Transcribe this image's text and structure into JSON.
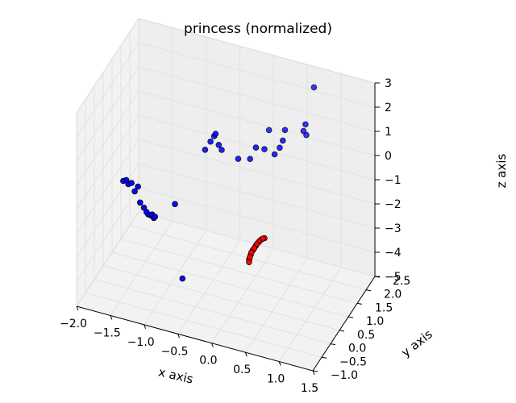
{
  "chart_data": {
    "type": "scatter",
    "projection": "3d",
    "title": "princess (normalized)",
    "xlabel": "x axis",
    "ylabel": "y axis",
    "zlabel": "z axis",
    "xlim": [
      -2.0,
      1.5
    ],
    "ylim": [
      -1.0,
      2.5
    ],
    "zlim": [
      -5,
      3
    ],
    "xticks": [
      "−2.0",
      "−1.5",
      "−1.0",
      "−0.5",
      "0.0",
      "0.5",
      "1.0",
      "1.5"
    ],
    "yticks": [
      "−1.0",
      "−0.5",
      "0.0",
      "0.5",
      "1.0",
      "1.5",
      "2.0",
      "2.5"
    ],
    "zticks": [
      "−5",
      "−4",
      "−3",
      "−2",
      "−1",
      "0",
      "1",
      "2",
      "3"
    ],
    "grid": true,
    "series": [
      {
        "color": "#0000ff",
        "edge_color": "#000000",
        "points": [
          [
            -1.65,
            0.3,
            -1.0
          ],
          [
            -1.6,
            0.28,
            -0.9
          ],
          [
            -1.58,
            0.32,
            -1.1
          ],
          [
            -1.52,
            0.27,
            -0.95
          ],
          [
            -1.48,
            0.3,
            -1.3
          ],
          [
            -1.42,
            0.25,
            -1.0
          ],
          [
            -1.4,
            0.3,
            -1.7
          ],
          [
            -1.35,
            0.32,
            -1.9
          ],
          [
            -1.3,
            0.28,
            -2.0
          ],
          [
            -1.28,
            0.3,
            -2.1
          ],
          [
            -1.25,
            0.33,
            -2.15
          ],
          [
            -1.22,
            0.29,
            -2.05
          ],
          [
            -1.2,
            0.31,
            -2.2
          ],
          [
            -1.18,
            0.3,
            -2.12
          ],
          [
            -0.95,
            0.55,
            -1.7
          ],
          [
            -0.7,
            1.3,
            -0.1
          ],
          [
            -0.62,
            1.3,
            0.3
          ],
          [
            -0.58,
            1.35,
            0.5
          ],
          [
            -0.55,
            1.32,
            0.65
          ],
          [
            -0.52,
            1.38,
            0.15
          ],
          [
            -0.48,
            1.4,
            -0.05
          ],
          [
            -0.25,
            1.45,
            -0.3
          ],
          [
            -0.1,
            1.55,
            -0.3
          ],
          [
            0.0,
            1.5,
            0.3
          ],
          [
            0.1,
            1.6,
            0.2
          ],
          [
            0.25,
            1.6,
            0.1
          ],
          [
            0.3,
            1.7,
            0.3
          ],
          [
            0.32,
            1.8,
            0.5
          ],
          [
            0.3,
            2.0,
            0.7
          ],
          [
            0.55,
            2.2,
            0.9
          ],
          [
            0.52,
            2.2,
            0.6
          ],
          [
            0.55,
            2.25,
            0.4
          ],
          [
            0.65,
            2.3,
            2.4
          ],
          [
            -0.8,
            0.4,
            -4.5
          ],
          [
            0.05,
            2.05,
            0.45
          ]
        ]
      },
      {
        "color": "#ff0000",
        "edge_color": "#000000",
        "points": [
          [
            0.15,
            0.55,
            -3.15
          ],
          [
            0.16,
            0.55,
            -3.05
          ],
          [
            0.17,
            0.56,
            -2.95
          ],
          [
            0.18,
            0.56,
            -2.85
          ],
          [
            0.2,
            0.57,
            -2.75
          ],
          [
            0.22,
            0.57,
            -2.65
          ],
          [
            0.24,
            0.58,
            -2.55
          ],
          [
            0.26,
            0.58,
            -2.45
          ],
          [
            0.28,
            0.59,
            -2.38
          ],
          [
            0.3,
            0.59,
            -2.3
          ],
          [
            0.32,
            0.6,
            -2.25
          ],
          [
            0.34,
            0.6,
            -2.2
          ],
          [
            0.36,
            0.61,
            -2.18
          ],
          [
            0.15,
            0.54,
            -3.25
          ]
        ]
      }
    ]
  }
}
